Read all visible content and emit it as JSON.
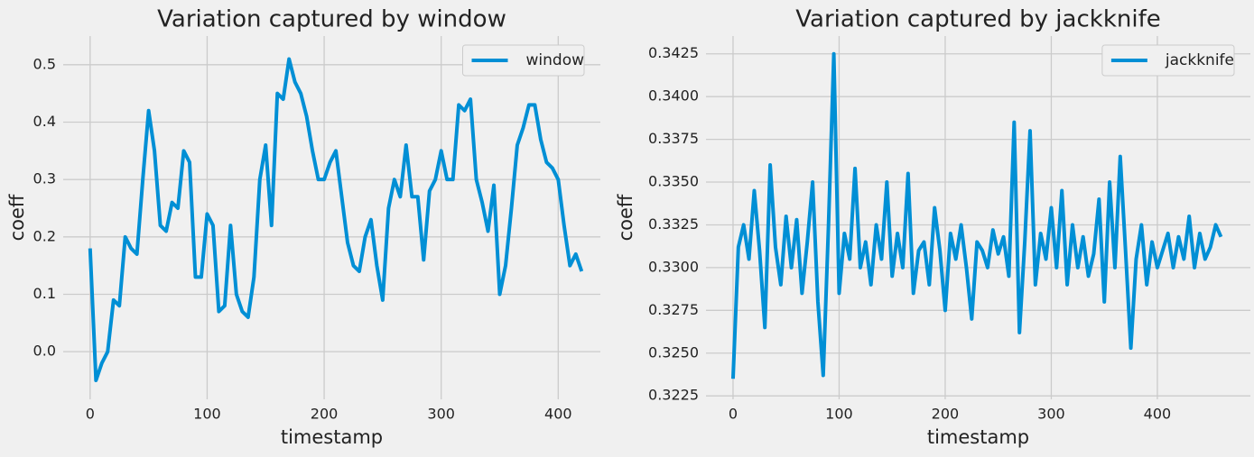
{
  "chart_data": [
    {
      "type": "line",
      "title": "Variation captured by window",
      "x_label": "timestamp",
      "y_label": "coeff",
      "xlim": [
        -23,
        436
      ],
      "ylim": [
        -0.083,
        0.55
      ],
      "xticks": [
        0,
        100,
        200,
        300,
        400
      ],
      "yticks": [
        {
          "value": 0,
          "label": "0.0"
        },
        0.1,
        0.2,
        0.3,
        0.4,
        0.5
      ],
      "grid": true,
      "legend": "upper right",
      "x": [
        0,
        5,
        10,
        15,
        20,
        25,
        30,
        35,
        40,
        45,
        50,
        55,
        60,
        65,
        70,
        75,
        80,
        85,
        90,
        95,
        100,
        105,
        110,
        115,
        120,
        125,
        130,
        135,
        140,
        145,
        150,
        155,
        160,
        165,
        170,
        175,
        180,
        185,
        190,
        195,
        200,
        205,
        210,
        215,
        220,
        225,
        230,
        235,
        240,
        245,
        250,
        255,
        260,
        265,
        270,
        275,
        280,
        285,
        290,
        295,
        300,
        305,
        310,
        315,
        320,
        325,
        330,
        335,
        340,
        345,
        350,
        355,
        360,
        365,
        370,
        375,
        380,
        385,
        390,
        395,
        400,
        405,
        410,
        415,
        420
      ],
      "series": [
        {
          "name": "window",
          "color": "#008fd5",
          "values": [
            0.18,
            -0.05,
            -0.02,
            0.0,
            0.09,
            0.08,
            0.2,
            0.18,
            0.17,
            0.3,
            0.42,
            0.35,
            0.22,
            0.21,
            0.26,
            0.25,
            0.35,
            0.33,
            0.13,
            0.13,
            0.24,
            0.22,
            0.07,
            0.08,
            0.22,
            0.1,
            0.07,
            0.06,
            0.13,
            0.3,
            0.36,
            0.22,
            0.45,
            0.44,
            0.51,
            0.47,
            0.45,
            0.41,
            0.35,
            0.3,
            0.3,
            0.33,
            0.35,
            0.27,
            0.19,
            0.15,
            0.14,
            0.2,
            0.23,
            0.15,
            0.09,
            0.25,
            0.3,
            0.27,
            0.36,
            0.27,
            0.27,
            0.16,
            0.28,
            0.3,
            0.35,
            0.3,
            0.3,
            0.43,
            0.42,
            0.44,
            0.3,
            0.26,
            0.21,
            0.29,
            0.1,
            0.15,
            0.25,
            0.36,
            0.39,
            0.43,
            0.43,
            0.37,
            0.33,
            0.32,
            0.3,
            0.22,
            0.15,
            0.17,
            0.14
          ]
        }
      ]
    },
    {
      "type": "line",
      "title": "Variation captured by jackknife",
      "x_label": "timestamp",
      "y_label": "coeff",
      "xlim": [
        -25.5,
        487.7
      ],
      "ylim": [
        0.3223,
        0.34354
      ],
      "xticks": [
        0,
        100,
        200,
        300,
        400
      ],
      "yticks": [
        0.3225,
        {
          "value": 0.325,
          "label": "0.3250"
        },
        0.3275,
        {
          "value": 0.33,
          "label": "0.3300"
        },
        0.3325,
        {
          "value": 0.335,
          "label": "0.3350"
        },
        0.3375,
        {
          "value": 0.34,
          "label": "0.3400"
        },
        0.3425
      ],
      "grid": true,
      "legend": "upper right",
      "x": [
        0,
        5,
        10,
        15,
        20,
        25,
        30,
        35,
        40,
        45,
        50,
        55,
        60,
        65,
        70,
        75,
        80,
        85,
        90,
        95,
        100,
        105,
        110,
        115,
        120,
        125,
        130,
        135,
        140,
        145,
        150,
        155,
        160,
        165,
        170,
        175,
        180,
        185,
        190,
        195,
        200,
        205,
        210,
        215,
        220,
        225,
        230,
        235,
        240,
        245,
        250,
        255,
        260,
        265,
        270,
        275,
        280,
        285,
        290,
        295,
        300,
        305,
        310,
        315,
        320,
        325,
        330,
        335,
        340,
        345,
        350,
        355,
        360,
        365,
        370,
        375,
        380,
        385,
        390,
        395,
        400,
        405,
        410,
        415,
        420,
        425,
        430,
        435,
        440,
        445,
        450,
        455,
        460
      ],
      "series": [
        {
          "name": "jackknife",
          "color": "#008fd5",
          "values": [
            0.3235,
            0.3312,
            0.3325,
            0.3305,
            0.3345,
            0.331,
            0.3265,
            0.336,
            0.3312,
            0.329,
            0.333,
            0.33,
            0.3328,
            0.3285,
            0.3315,
            0.335,
            0.328,
            0.3237,
            0.3325,
            0.3425,
            0.3285,
            0.332,
            0.3305,
            0.3358,
            0.33,
            0.3315,
            0.329,
            0.3325,
            0.3305,
            0.335,
            0.3295,
            0.332,
            0.33,
            0.3355,
            0.3285,
            0.331,
            0.3315,
            0.329,
            0.3335,
            0.331,
            0.3275,
            0.332,
            0.3305,
            0.3325,
            0.33,
            0.327,
            0.3315,
            0.331,
            0.33,
            0.3322,
            0.3308,
            0.3318,
            0.3295,
            0.3385,
            0.3262,
            0.3315,
            0.338,
            0.329,
            0.332,
            0.3305,
            0.3335,
            0.33,
            0.3345,
            0.329,
            0.3325,
            0.33,
            0.3318,
            0.3295,
            0.3308,
            0.334,
            0.328,
            0.335,
            0.33,
            0.3365,
            0.331,
            0.3253,
            0.3305,
            0.3325,
            0.329,
            0.3315,
            0.33,
            0.331,
            0.332,
            0.33,
            0.3318,
            0.3305,
            0.333,
            0.33,
            0.332,
            0.3305,
            0.3312,
            0.3325,
            0.3318
          ]
        }
      ]
    }
  ]
}
